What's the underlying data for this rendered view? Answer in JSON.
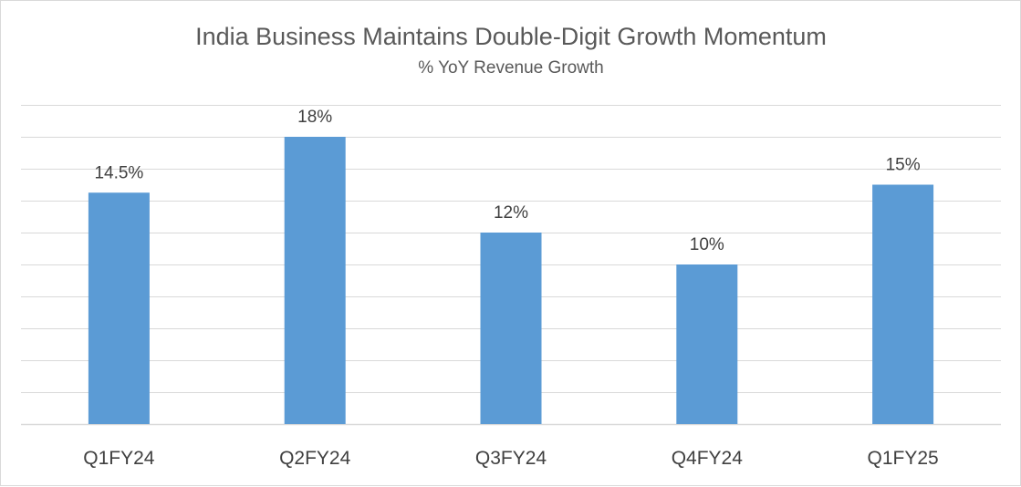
{
  "chart_data": {
    "type": "bar",
    "title": "India Business Maintains Double-Digit Growth Momentum",
    "subtitle": "% YoY Revenue Growth",
    "categories": [
      "Q1FY24",
      "Q2FY24",
      "Q3FY24",
      "Q4FY24",
      "Q1FY25"
    ],
    "values": [
      14.5,
      18,
      12,
      10,
      15
    ],
    "data_labels": [
      "14.5%",
      "18%",
      "12%",
      "10%",
      "15%"
    ],
    "xlabel": "",
    "ylabel": "",
    "ylim": [
      0,
      20
    ],
    "y_gridline_step": 2,
    "grid": true,
    "y_tick_labels_visible": false,
    "legend": "none",
    "bar_color": "#5b9bd5"
  }
}
